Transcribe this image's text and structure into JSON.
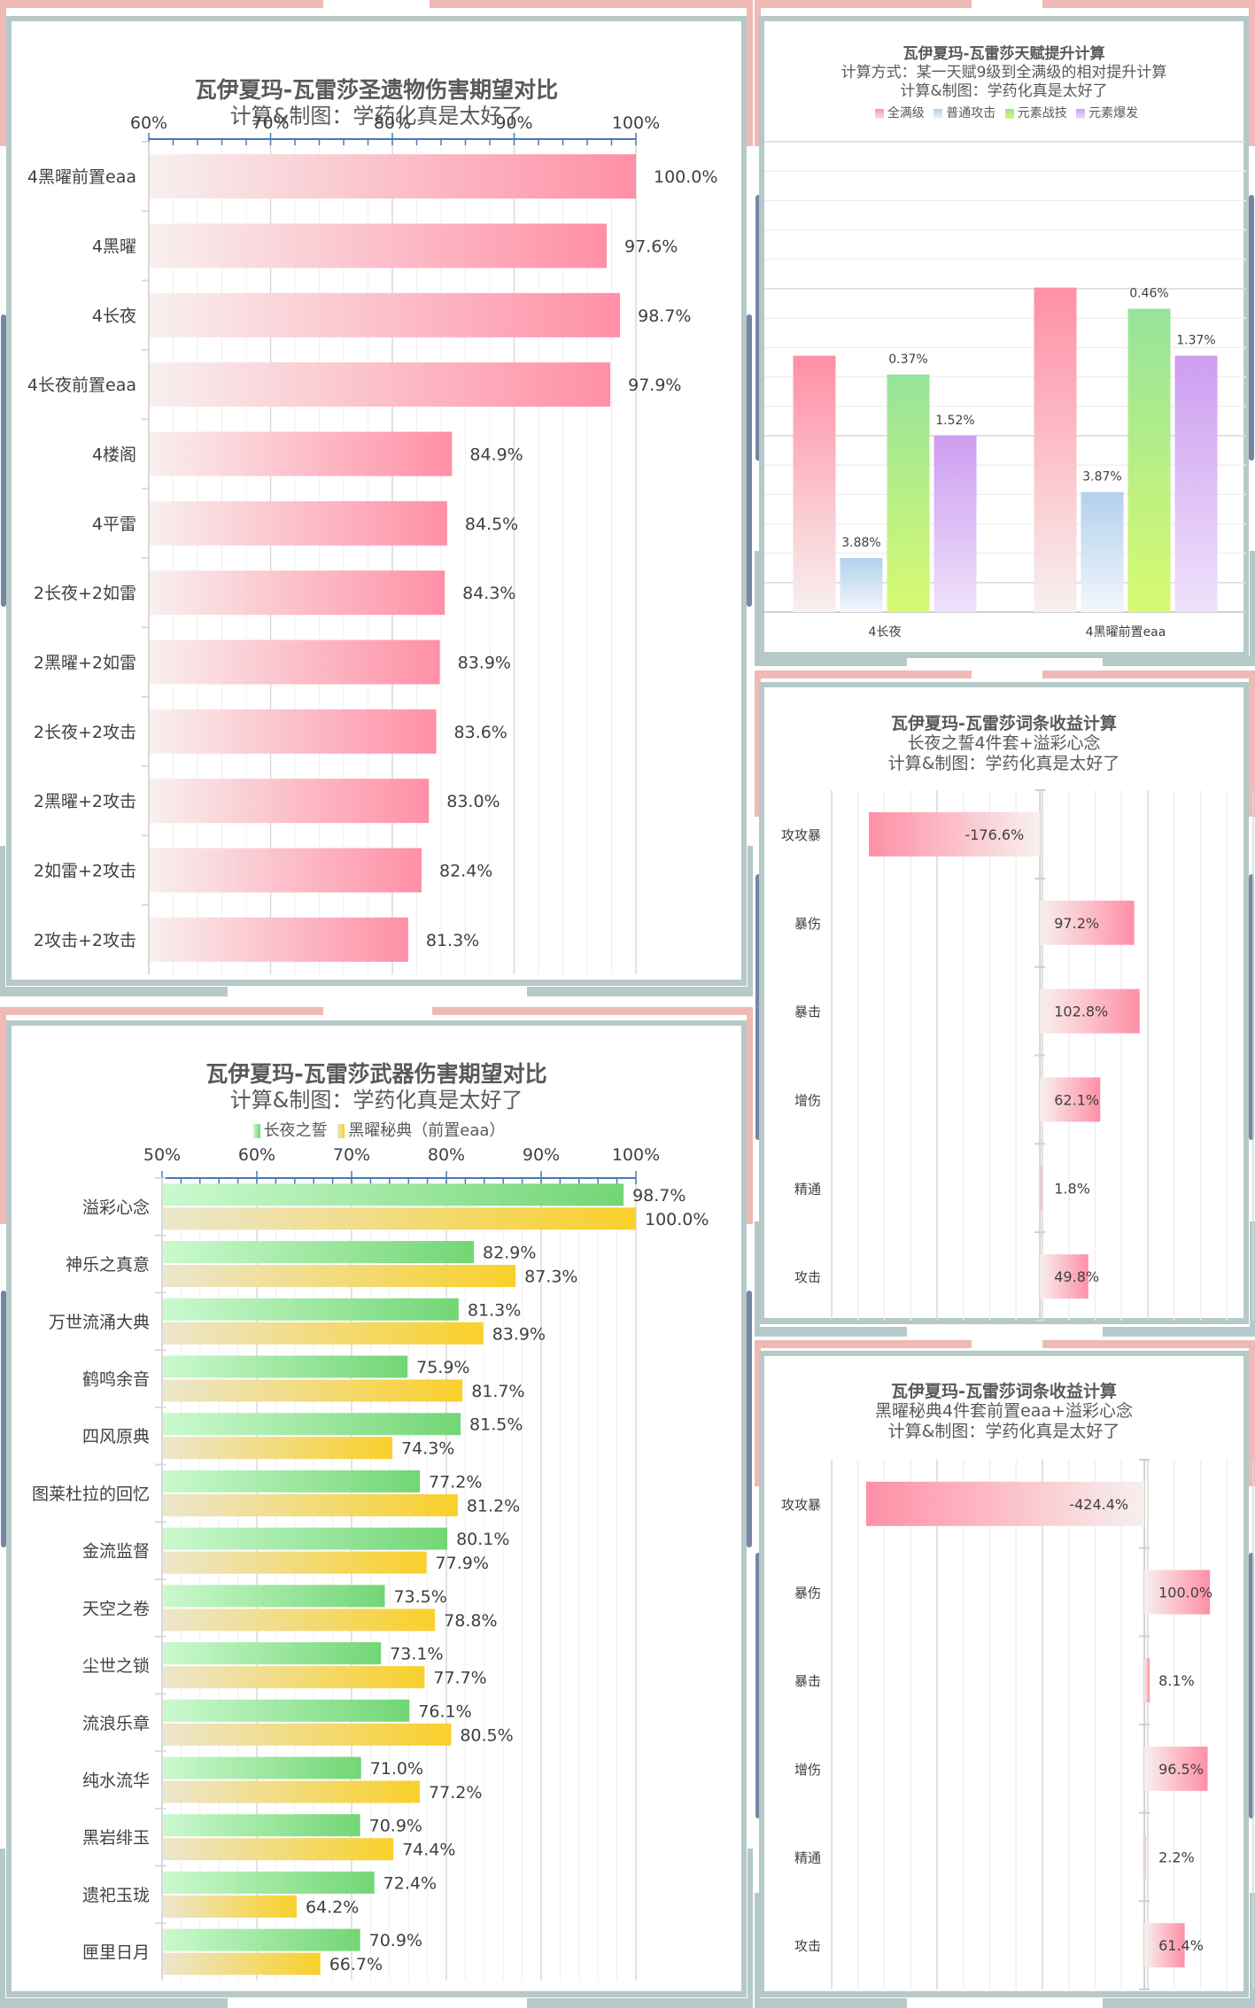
{
  "colors": {
    "frame_pink": "#efb9b5",
    "frame_teal": "#b5c9c8",
    "frame_navy": "#7486a4",
    "bar_pink": "#ff8fa6",
    "bar_pink_light": "#f8f0ee",
    "bar_green": "#72d674",
    "bar_green_light": "#cbf9cf",
    "bar_gold": "#f9d02a",
    "bar_gold_light": "#ece6cd",
    "talent_full": "#ff8fa6",
    "talent_normal": "#b3d1ec",
    "talent_skill": "#96e39b",
    "talent_skill_bottom": "#d8fa70",
    "talent_burst": "#cd9df0",
    "axis_blue": "#4a78b5"
  },
  "chart_data": [
    {
      "id": "artifacts",
      "type": "bar",
      "orientation": "horizontal",
      "title": "瓦伊夏玛-瓦雷莎圣遗物伤害期望对比",
      "subtitle": "计算&制图：学药化真是太好了",
      "xlim": [
        60,
        100
      ],
      "xticks": [
        "60%",
        "70%",
        "80%",
        "90%",
        "100%"
      ],
      "xtick_values": [
        60,
        70,
        80,
        90,
        100
      ],
      "grid": true,
      "categories": [
        "4黑曜前置eaa",
        "4黑曜",
        "4长夜",
        "4长夜前置eaa",
        "4楼阁",
        "4平雷",
        "2长夜+2如雷",
        "2黑曜+2如雷",
        "2长夜+2攻击",
        "2黑曜+2攻击",
        "2如雷+2攻击",
        "2攻击+2攻击"
      ],
      "values": [
        100.0,
        97.6,
        98.7,
        97.9,
        84.9,
        84.5,
        84.3,
        83.9,
        83.6,
        83.0,
        82.4,
        81.3
      ],
      "labels": [
        "100.0%",
        "97.6%",
        "98.7%",
        "97.9%",
        "84.9%",
        "84.5%",
        "84.3%",
        "83.9%",
        "83.6%",
        "83.0%",
        "82.4%",
        "81.3%"
      ]
    },
    {
      "id": "talents",
      "type": "bar",
      "orientation": "vertical",
      "title": "瓦伊夏玛-瓦雷莎天赋提升计算",
      "subtitle": "计算方式：某一天赋9级到全满级的相对提升计算",
      "credit": "计算&制图：学药化真是太好了",
      "legend_position": "top",
      "grid": true,
      "y_axis_labeled": false,
      "ylim": [
        0,
        100
      ],
      "categories": [
        "4长夜",
        "4黑曜前置eaa"
      ],
      "series": [
        {
          "name": "全满级",
          "values": [
            54.5,
            69.0
          ],
          "labels": [
            "",
            ""
          ]
        },
        {
          "name": "普通攻击",
          "values": [
            11.5,
            25.5
          ],
          "labels": [
            "3.88%",
            "3.87%"
          ]
        },
        {
          "name": "元素战技",
          "values": [
            50.5,
            64.5
          ],
          "labels": [
            "0.37%",
            "0.46%"
          ]
        },
        {
          "name": "元素爆发",
          "values": [
            37.5,
            54.5
          ],
          "labels": [
            "1.52%",
            "1.37%"
          ]
        }
      ]
    },
    {
      "id": "substats-nighttime",
      "type": "bar",
      "orientation": "horizontal",
      "title": "瓦伊夏玛-瓦雷莎词条收益计算",
      "subtitle": "长夜之誓4件套+溢彩心念",
      "credit": "计算&制图：学药化真是太好了",
      "grid": true,
      "xlim": [
        -215,
        220
      ],
      "categories": [
        "攻攻暴",
        "暴伤",
        "暴击",
        "增伤",
        "精通",
        "攻击"
      ],
      "values": [
        -176.6,
        97.2,
        102.8,
        62.1,
        1.8,
        49.8
      ],
      "labels": [
        "-176.6%",
        "97.2%",
        "102.8%",
        "62.1%",
        "1.8%",
        "49.8%"
      ]
    },
    {
      "id": "substats-obsidian",
      "type": "bar",
      "orientation": "horizontal",
      "title": "瓦伊夏玛-瓦雷莎词条收益计算",
      "subtitle": "黑曜秘典4件套前置eaa+溢彩心念",
      "credit": "计算&制图：学药化真是太好了",
      "grid": true,
      "xlim": [
        -477,
        166
      ],
      "categories": [
        "攻攻暴",
        "暴伤",
        "暴击",
        "增伤",
        "精通",
        "攻击"
      ],
      "values": [
        -424.4,
        100.0,
        8.1,
        96.5,
        2.2,
        61.4
      ],
      "labels": [
        "-424.4%",
        "100.0%",
        "8.1%",
        "96.5%",
        "2.2%",
        "61.4%"
      ]
    },
    {
      "id": "weapons",
      "type": "bar",
      "orientation": "horizontal",
      "title": "瓦伊夏玛-瓦雷莎武器伤害期望对比",
      "subtitle": "计算&制图：学药化真是太好了",
      "legend_position": "top",
      "xlim": [
        50,
        100
      ],
      "xticks": [
        "50%",
        "60%",
        "70%",
        "80%",
        "90%",
        "100%"
      ],
      "xtick_values": [
        50,
        60,
        70,
        80,
        90,
        100
      ],
      "grid": true,
      "categories": [
        "溢彩心念",
        "神乐之真意",
        "万世流涌大典",
        "鹤鸣余音",
        "四风原典",
        "图莱杜拉的回忆",
        "金流监督",
        "天空之卷",
        "尘世之锁",
        "流浪乐章",
        "纯水流华",
        "黑岩绯玉",
        "遗祀玉珑",
        "匣里日月"
      ],
      "series": [
        {
          "name": "长夜之誓",
          "values": [
            98.7,
            82.9,
            81.3,
            75.9,
            81.5,
            77.2,
            80.1,
            73.5,
            73.1,
            76.1,
            71.0,
            70.9,
            72.4,
            70.9
          ],
          "labels": [
            "98.7%",
            "82.9%",
            "81.3%",
            "75.9%",
            "81.5%",
            "77.2%",
            "80.1%",
            "73.5%",
            "73.1%",
            "76.1%",
            "71.0%",
            "70.9%",
            "72.4%",
            "70.9%"
          ]
        },
        {
          "name": "黑曜秘典（前置eaa）",
          "values": [
            100.0,
            87.3,
            83.9,
            81.7,
            74.3,
            81.2,
            77.9,
            78.8,
            77.7,
            80.5,
            77.2,
            74.4,
            64.2,
            66.7
          ],
          "labels": [
            "100.0%",
            "87.3%",
            "83.9%",
            "81.7%",
            "74.3%",
            "81.2%",
            "77.9%",
            "78.8%",
            "77.7%",
            "80.5%",
            "77.2%",
            "74.4%",
            "64.2%",
            "66.7%"
          ]
        }
      ]
    }
  ]
}
